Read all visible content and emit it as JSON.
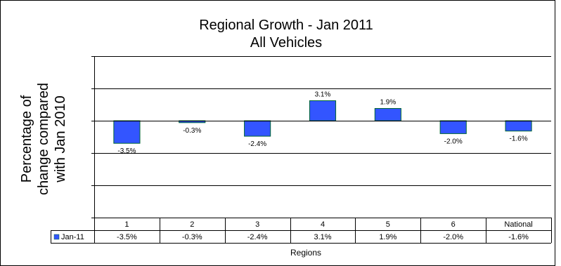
{
  "chart_data": {
    "type": "bar",
    "title": "Regional Growth - Jan 2011",
    "subtitle": "All Vehicles",
    "ylabel_lines": [
      "Percentage of",
      "change compared",
      "with Jan 2010"
    ],
    "xlabel": "Regions",
    "categories": [
      "1",
      "2",
      "3",
      "4",
      "5",
      "6",
      "National"
    ],
    "series": [
      {
        "name": "Jan-11",
        "values": [
          -3.5,
          -0.3,
          -2.4,
          3.1,
          1.9,
          -2.0,
          -1.6
        ],
        "data_labels": [
          "-3.5%",
          "-0.3%",
          "-2.4%",
          "3.1%",
          "1.9%",
          "-2.0%",
          "-1.6%"
        ],
        "color": "#3355ff"
      }
    ],
    "ylim": [
      -15,
      10
    ],
    "ytick_step": 5,
    "grid": true,
    "legend": "data-table",
    "bar_edge_color": "#006633"
  }
}
